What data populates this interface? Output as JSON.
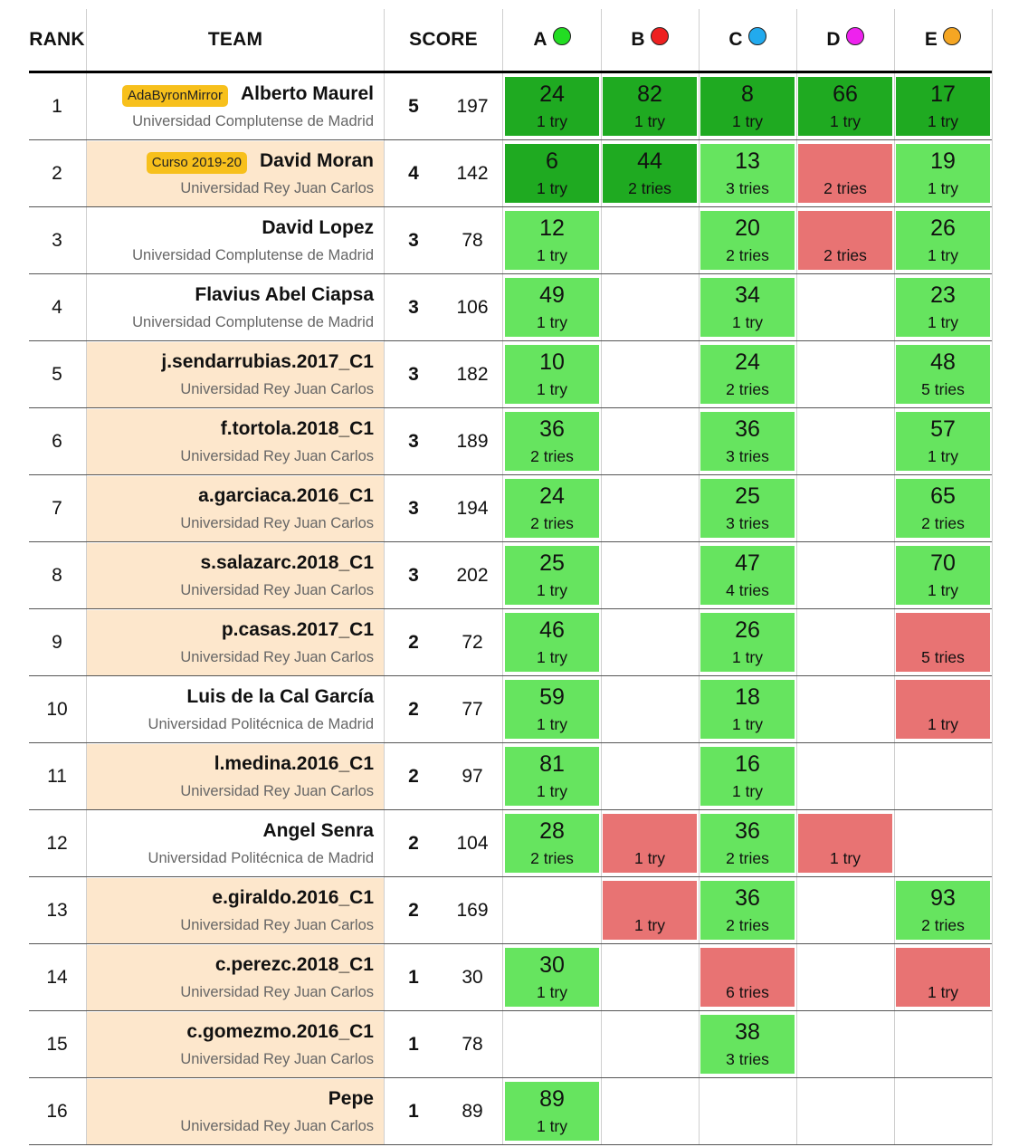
{
  "header": {
    "rank": "RANK",
    "team": "TEAM",
    "score": "SCORE",
    "problems": [
      {
        "label": "A",
        "color": "#22dd22"
      },
      {
        "label": "B",
        "color": "#ee2020"
      },
      {
        "label": "C",
        "color": "#22aaee"
      },
      {
        "label": "D",
        "color": "#ee22ee"
      },
      {
        "label": "E",
        "color": "#f5a623"
      }
    ]
  },
  "colors": {
    "solved": "#66e45f",
    "first_to_solve": "#1faa21",
    "failed": "#e87373",
    "highlight_row": "#fde7cc",
    "badge": "#f7c01c"
  },
  "rows": [
    {
      "rank": "1",
      "name": "Alberto Maurel",
      "university": "Universidad Complutense de Madrid",
      "badge": "AdaByronMirror",
      "highlight": false,
      "solved": "5",
      "penalty": "197",
      "cells": [
        {
          "status": "first",
          "time": "24",
          "tries": "1 try"
        },
        {
          "status": "first",
          "time": "82",
          "tries": "1 try"
        },
        {
          "status": "first",
          "time": "8",
          "tries": "1 try"
        },
        {
          "status": "first",
          "time": "66",
          "tries": "1 try"
        },
        {
          "status": "first",
          "time": "17",
          "tries": "1 try"
        }
      ]
    },
    {
      "rank": "2",
      "name": "David Moran",
      "university": "Universidad Rey Juan Carlos",
      "badge": "Curso 2019-20",
      "highlight": true,
      "solved": "4",
      "penalty": "142",
      "cells": [
        {
          "status": "first",
          "time": "6",
          "tries": "1 try"
        },
        {
          "status": "first",
          "time": "44",
          "tries": "2 tries"
        },
        {
          "status": "ok",
          "time": "13",
          "tries": "3 tries"
        },
        {
          "status": "bad",
          "time": "",
          "tries": "2 tries"
        },
        {
          "status": "ok",
          "time": "19",
          "tries": "1 try"
        }
      ]
    },
    {
      "rank": "3",
      "name": "David Lopez",
      "university": "Universidad Complutense de Madrid",
      "badge": "",
      "highlight": false,
      "solved": "3",
      "penalty": "78",
      "cells": [
        {
          "status": "ok",
          "time": "12",
          "tries": "1 try"
        },
        {
          "status": "none"
        },
        {
          "status": "ok",
          "time": "20",
          "tries": "2 tries"
        },
        {
          "status": "bad",
          "time": "",
          "tries": "2 tries"
        },
        {
          "status": "ok",
          "time": "26",
          "tries": "1 try"
        }
      ]
    },
    {
      "rank": "4",
      "name": "Flavius Abel Ciapsa",
      "university": "Universidad Complutense de Madrid",
      "badge": "",
      "highlight": false,
      "solved": "3",
      "penalty": "106",
      "cells": [
        {
          "status": "ok",
          "time": "49",
          "tries": "1 try"
        },
        {
          "status": "none"
        },
        {
          "status": "ok",
          "time": "34",
          "tries": "1 try"
        },
        {
          "status": "none"
        },
        {
          "status": "ok",
          "time": "23",
          "tries": "1 try"
        }
      ]
    },
    {
      "rank": "5",
      "name": "j.sendarrubias.2017_C1",
      "university": "Universidad Rey Juan Carlos",
      "badge": "",
      "highlight": true,
      "solved": "3",
      "penalty": "182",
      "cells": [
        {
          "status": "ok",
          "time": "10",
          "tries": "1 try"
        },
        {
          "status": "none"
        },
        {
          "status": "ok",
          "time": "24",
          "tries": "2 tries"
        },
        {
          "status": "none"
        },
        {
          "status": "ok",
          "time": "48",
          "tries": "5 tries"
        }
      ]
    },
    {
      "rank": "6",
      "name": "f.tortola.2018_C1",
      "university": "Universidad Rey Juan Carlos",
      "badge": "",
      "highlight": true,
      "solved": "3",
      "penalty": "189",
      "cells": [
        {
          "status": "ok",
          "time": "36",
          "tries": "2 tries"
        },
        {
          "status": "none"
        },
        {
          "status": "ok",
          "time": "36",
          "tries": "3 tries"
        },
        {
          "status": "none"
        },
        {
          "status": "ok",
          "time": "57",
          "tries": "1 try"
        }
      ]
    },
    {
      "rank": "7",
      "name": "a.garciaca.2016_C1",
      "university": "Universidad Rey Juan Carlos",
      "badge": "",
      "highlight": true,
      "solved": "3",
      "penalty": "194",
      "cells": [
        {
          "status": "ok",
          "time": "24",
          "tries": "2 tries"
        },
        {
          "status": "none"
        },
        {
          "status": "ok",
          "time": "25",
          "tries": "3 tries"
        },
        {
          "status": "none"
        },
        {
          "status": "ok",
          "time": "65",
          "tries": "2 tries"
        }
      ]
    },
    {
      "rank": "8",
      "name": "s.salazarc.2018_C1",
      "university": "Universidad Rey Juan Carlos",
      "badge": "",
      "highlight": true,
      "solved": "3",
      "penalty": "202",
      "cells": [
        {
          "status": "ok",
          "time": "25",
          "tries": "1 try"
        },
        {
          "status": "none"
        },
        {
          "status": "ok",
          "time": "47",
          "tries": "4 tries"
        },
        {
          "status": "none"
        },
        {
          "status": "ok",
          "time": "70",
          "tries": "1 try"
        }
      ]
    },
    {
      "rank": "9",
      "name": "p.casas.2017_C1",
      "university": "Universidad Rey Juan Carlos",
      "badge": "",
      "highlight": true,
      "solved": "2",
      "penalty": "72",
      "cells": [
        {
          "status": "ok",
          "time": "46",
          "tries": "1 try"
        },
        {
          "status": "none"
        },
        {
          "status": "ok",
          "time": "26",
          "tries": "1 try"
        },
        {
          "status": "none"
        },
        {
          "status": "bad",
          "time": "",
          "tries": "5 tries"
        }
      ]
    },
    {
      "rank": "10",
      "name": "Luis de la Cal García",
      "university": "Universidad Politécnica de Madrid",
      "badge": "",
      "highlight": false,
      "solved": "2",
      "penalty": "77",
      "cells": [
        {
          "status": "ok",
          "time": "59",
          "tries": "1 try"
        },
        {
          "status": "none"
        },
        {
          "status": "ok",
          "time": "18",
          "tries": "1 try"
        },
        {
          "status": "none"
        },
        {
          "status": "bad",
          "time": "",
          "tries": "1 try"
        }
      ]
    },
    {
      "rank": "11",
      "name": "l.medina.2016_C1",
      "university": "Universidad Rey Juan Carlos",
      "badge": "",
      "highlight": true,
      "solved": "2",
      "penalty": "97",
      "cells": [
        {
          "status": "ok",
          "time": "81",
          "tries": "1 try"
        },
        {
          "status": "none"
        },
        {
          "status": "ok",
          "time": "16",
          "tries": "1 try"
        },
        {
          "status": "none"
        },
        {
          "status": "none"
        }
      ]
    },
    {
      "rank": "12",
      "name": "Angel Senra",
      "university": "Universidad Politécnica de Madrid",
      "badge": "",
      "highlight": false,
      "solved": "2",
      "penalty": "104",
      "cells": [
        {
          "status": "ok",
          "time": "28",
          "tries": "2 tries"
        },
        {
          "status": "bad",
          "time": "",
          "tries": "1 try"
        },
        {
          "status": "ok",
          "time": "36",
          "tries": "2 tries"
        },
        {
          "status": "bad",
          "time": "",
          "tries": "1 try"
        },
        {
          "status": "none"
        }
      ]
    },
    {
      "rank": "13",
      "name": "e.giraldo.2016_C1",
      "university": "Universidad Rey Juan Carlos",
      "badge": "",
      "highlight": true,
      "solved": "2",
      "penalty": "169",
      "cells": [
        {
          "status": "none"
        },
        {
          "status": "bad",
          "time": "",
          "tries": "1 try"
        },
        {
          "status": "ok",
          "time": "36",
          "tries": "2 tries"
        },
        {
          "status": "none"
        },
        {
          "status": "ok",
          "time": "93",
          "tries": "2 tries"
        }
      ]
    },
    {
      "rank": "14",
      "name": "c.perezc.2018_C1",
      "university": "Universidad Rey Juan Carlos",
      "badge": "",
      "highlight": true,
      "solved": "1",
      "penalty": "30",
      "cells": [
        {
          "status": "ok",
          "time": "30",
          "tries": "1 try"
        },
        {
          "status": "none"
        },
        {
          "status": "bad",
          "time": "",
          "tries": "6 tries"
        },
        {
          "status": "none"
        },
        {
          "status": "bad",
          "time": "",
          "tries": "1 try"
        }
      ]
    },
    {
      "rank": "15",
      "name": "c.gomezmo.2016_C1",
      "university": "Universidad Rey Juan Carlos",
      "badge": "",
      "highlight": true,
      "solved": "1",
      "penalty": "78",
      "cells": [
        {
          "status": "none"
        },
        {
          "status": "none"
        },
        {
          "status": "ok",
          "time": "38",
          "tries": "3 tries"
        },
        {
          "status": "none"
        },
        {
          "status": "none"
        }
      ]
    },
    {
      "rank": "16",
      "name": "Pepe",
      "university": "Universidad Rey Juan Carlos",
      "badge": "",
      "highlight": true,
      "solved": "1",
      "penalty": "89",
      "cells": [
        {
          "status": "ok",
          "time": "89",
          "tries": "1 try"
        },
        {
          "status": "none"
        },
        {
          "status": "none"
        },
        {
          "status": "none"
        },
        {
          "status": "none"
        }
      ]
    }
  ]
}
